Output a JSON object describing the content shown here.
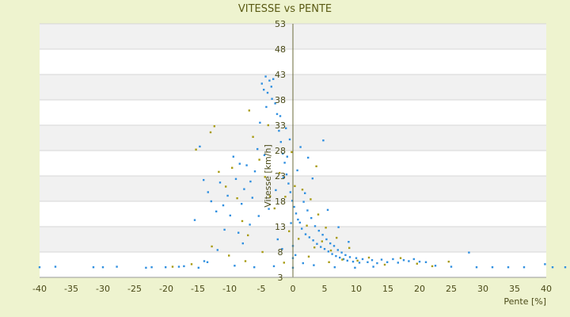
{
  "chart_data": {
    "type": "scatter",
    "title": "VITESSE vs PENTE",
    "xlabel": "Pente [%]",
    "ylabel": "Vitesse [km/h]",
    "xlim": [
      -40,
      40
    ],
    "ylim": [
      3,
      53
    ],
    "x_ticks": [
      -40,
      -35,
      -30,
      -25,
      -20,
      -15,
      -10,
      -5,
      0,
      5,
      10,
      15,
      20,
      25,
      30,
      35,
      40
    ],
    "y_ticks": [
      3,
      8,
      13,
      18,
      23,
      28,
      33,
      38,
      43,
      48,
      53
    ],
    "grid": true,
    "band_colors": [
      "#f1f1f1",
      "#ffffff"
    ],
    "legend": "none",
    "series": [
      {
        "color": "#2f8fe0",
        "values": [
          [
            -40.0,
            5.0
          ],
          [
            -37.5,
            5.1
          ],
          [
            -31.5,
            5.0
          ],
          [
            -30.0,
            5.0
          ],
          [
            -27.8,
            5.1
          ],
          [
            -23.2,
            4.9
          ],
          [
            -22.3,
            5.0
          ],
          [
            -20.1,
            5.0
          ],
          [
            -18.0,
            5.1
          ],
          [
            -17.2,
            5.2
          ],
          [
            -14.9,
            4.9
          ],
          [
            -14.0,
            6.2
          ],
          [
            -15.5,
            14.3
          ],
          [
            -14.7,
            28.8
          ],
          [
            -14.1,
            22.2
          ],
          [
            -13.4,
            19.8
          ],
          [
            -12.9,
            18.0
          ],
          [
            -12.1,
            16.0
          ],
          [
            -11.5,
            21.7
          ],
          [
            -11.0,
            17.2
          ],
          [
            -10.3,
            19.1
          ],
          [
            -9.9,
            15.2
          ],
          [
            -9.4,
            26.8
          ],
          [
            -9.0,
            22.4
          ],
          [
            -8.6,
            11.8
          ],
          [
            -8.1,
            17.5
          ],
          [
            -7.7,
            20.4
          ],
          [
            -7.3,
            25.1
          ],
          [
            -6.8,
            13.4
          ],
          [
            -6.4,
            18.7
          ],
          [
            -6.0,
            23.9
          ],
          [
            -5.6,
            28.3
          ],
          [
            -5.2,
            33.5
          ],
          [
            -4.9,
            41.2
          ],
          [
            -4.6,
            40.0
          ],
          [
            -4.3,
            42.6
          ],
          [
            -4.0,
            39.4
          ],
          [
            -3.7,
            41.8
          ],
          [
            -3.4,
            40.6
          ],
          [
            -3.1,
            42.1
          ],
          [
            -2.8,
            37.3
          ],
          [
            -2.5,
            35.2
          ],
          [
            -2.2,
            31.9
          ],
          [
            -1.9,
            29.7
          ],
          [
            -1.6,
            27.4
          ],
          [
            -1.3,
            25.6
          ],
          [
            -1.0,
            23.3
          ],
          [
            -0.7,
            21.5
          ],
          [
            -0.4,
            19.8
          ],
          [
            -0.1,
            18.1
          ],
          [
            0.2,
            16.9
          ],
          [
            0.5,
            15.6
          ],
          [
            0.8,
            14.4
          ],
          [
            1.1,
            13.8
          ],
          [
            1.4,
            12.6
          ],
          [
            1.7,
            17.9
          ],
          [
            2.0,
            11.5
          ],
          [
            2.3,
            16.2
          ],
          [
            2.6,
            10.9
          ],
          [
            2.9,
            14.7
          ],
          [
            3.2,
            10.3
          ],
          [
            3.5,
            13.1
          ],
          [
            3.8,
            9.6
          ],
          [
            4.1,
            12.2
          ],
          [
            4.4,
            9.0
          ],
          [
            4.7,
            11.4
          ],
          [
            5.0,
            8.6
          ],
          [
            5.3,
            10.5
          ],
          [
            5.6,
            8.1
          ],
          [
            5.9,
            9.7
          ],
          [
            6.2,
            7.6
          ],
          [
            6.5,
            9.2
          ],
          [
            6.8,
            7.2
          ],
          [
            7.1,
            8.4
          ],
          [
            7.4,
            6.9
          ],
          [
            7.7,
            7.9
          ],
          [
            8.0,
            6.6
          ],
          [
            8.3,
            7.4
          ],
          [
            8.6,
            6.3
          ],
          [
            9.0,
            7.0
          ],
          [
            9.5,
            6.1
          ],
          [
            10.0,
            6.8
          ],
          [
            10.5,
            5.9
          ],
          [
            11.0,
            6.6
          ],
          [
            11.8,
            6.0
          ],
          [
            12.5,
            6.4
          ],
          [
            13.3,
            5.8
          ],
          [
            14.0,
            6.5
          ],
          [
            14.9,
            6.0
          ],
          [
            15.8,
            6.6
          ],
          [
            16.6,
            5.9
          ],
          [
            17.5,
            6.4
          ],
          [
            18.3,
            6.2
          ],
          [
            19.1,
            6.6
          ],
          [
            20.0,
            6.1
          ],
          [
            21.0,
            6.0
          ],
          [
            22.5,
            5.3
          ],
          [
            25.0,
            5.1
          ],
          [
            27.8,
            7.9
          ],
          [
            29.0,
            5.0
          ],
          [
            31.5,
            5.0
          ],
          [
            34.0,
            5.0
          ],
          [
            36.5,
            5.0
          ],
          [
            39.8,
            5.6
          ],
          [
            41.0,
            5.0
          ],
          [
            43.0,
            5.0
          ],
          [
            -1.5,
            22.7
          ],
          [
            -2.7,
            20.2
          ],
          [
            -0.9,
            26.8
          ],
          [
            0.7,
            24.1
          ],
          [
            1.9,
            19.6
          ],
          [
            -3.8,
            16.5
          ],
          [
            -5.4,
            15.1
          ],
          [
            -0.3,
            13.7
          ],
          [
            0.0,
            9.2
          ],
          [
            0.0,
            6.8
          ],
          [
            0.0,
            4.9
          ],
          [
            -4.2,
            36.6
          ],
          [
            -3.3,
            38.2
          ],
          [
            -2.0,
            34.8
          ],
          [
            -1.1,
            32.4
          ],
          [
            -6.7,
            21.9
          ],
          [
            -7.9,
            9.7
          ],
          [
            -11.9,
            8.4
          ],
          [
            -13.5,
            6.0
          ],
          [
            -9.2,
            5.3
          ],
          [
            -6.1,
            5.0
          ],
          [
            -3.0,
            5.2
          ],
          [
            3.3,
            5.4
          ],
          [
            6.6,
            5.0
          ],
          [
            9.8,
            4.9
          ],
          [
            12.7,
            5.1
          ],
          [
            4.8,
            30.0
          ],
          [
            3.1,
            22.5
          ],
          [
            1.2,
            28.7
          ],
          [
            -0.5,
            30.2
          ],
          [
            2.4,
            26.6
          ],
          [
            5.5,
            16.3
          ],
          [
            7.2,
            12.9
          ],
          [
            8.8,
            10.0
          ],
          [
            -4.5,
            27.1
          ],
          [
            -8.4,
            25.4
          ],
          [
            -10.8,
            12.4
          ],
          [
            -2.4,
            10.5
          ],
          [
            -1.7,
            8.6
          ],
          [
            0.4,
            7.4
          ],
          [
            1.6,
            5.8
          ]
        ]
      },
      {
        "color": "#a89b12",
        "values": [
          [
            -15.3,
            28.2
          ],
          [
            -13.0,
            31.6
          ],
          [
            -12.4,
            32.8
          ],
          [
            -11.7,
            23.8
          ],
          [
            -10.6,
            20.9
          ],
          [
            -9.6,
            24.6
          ],
          [
            -8.8,
            18.6
          ],
          [
            -8.0,
            14.1
          ],
          [
            -7.1,
            11.3
          ],
          [
            -6.3,
            30.7
          ],
          [
            -5.3,
            26.2
          ],
          [
            -4.4,
            22.8
          ],
          [
            -3.6,
            19.0
          ],
          [
            -2.9,
            16.6
          ],
          [
            -2.1,
            23.6
          ],
          [
            -1.2,
            18.9
          ],
          [
            -0.6,
            12.1
          ],
          [
            0.3,
            21.0
          ],
          [
            0.9,
            10.6
          ],
          [
            1.5,
            20.3
          ],
          [
            2.2,
            13.2
          ],
          [
            2.8,
            18.4
          ],
          [
            3.4,
            8.9
          ],
          [
            4.0,
            15.4
          ],
          [
            4.6,
            10.1
          ],
          [
            5.2,
            12.8
          ],
          [
            6.0,
            8.3
          ],
          [
            6.9,
            10.8
          ],
          [
            7.8,
            6.5
          ],
          [
            8.9,
            8.8
          ],
          [
            10.2,
            6.3
          ],
          [
            12.0,
            6.9
          ],
          [
            14.5,
            5.5
          ],
          [
            17.0,
            6.8
          ],
          [
            19.6,
            5.7
          ],
          [
            22.0,
            5.2
          ],
          [
            24.6,
            6.1
          ],
          [
            -12.8,
            9.1
          ],
          [
            -10.1,
            7.3
          ],
          [
            -7.5,
            6.2
          ],
          [
            -4.8,
            8.0
          ],
          [
            -1.4,
            5.9
          ],
          [
            2.5,
            7.1
          ],
          [
            5.7,
            6.0
          ],
          [
            -16.0,
            5.6
          ],
          [
            -19.0,
            5.1
          ],
          [
            -6.9,
            35.9
          ],
          [
            -3.9,
            33.0
          ],
          [
            -0.2,
            27.7
          ],
          [
            3.7,
            24.9
          ]
        ]
      }
    ]
  }
}
